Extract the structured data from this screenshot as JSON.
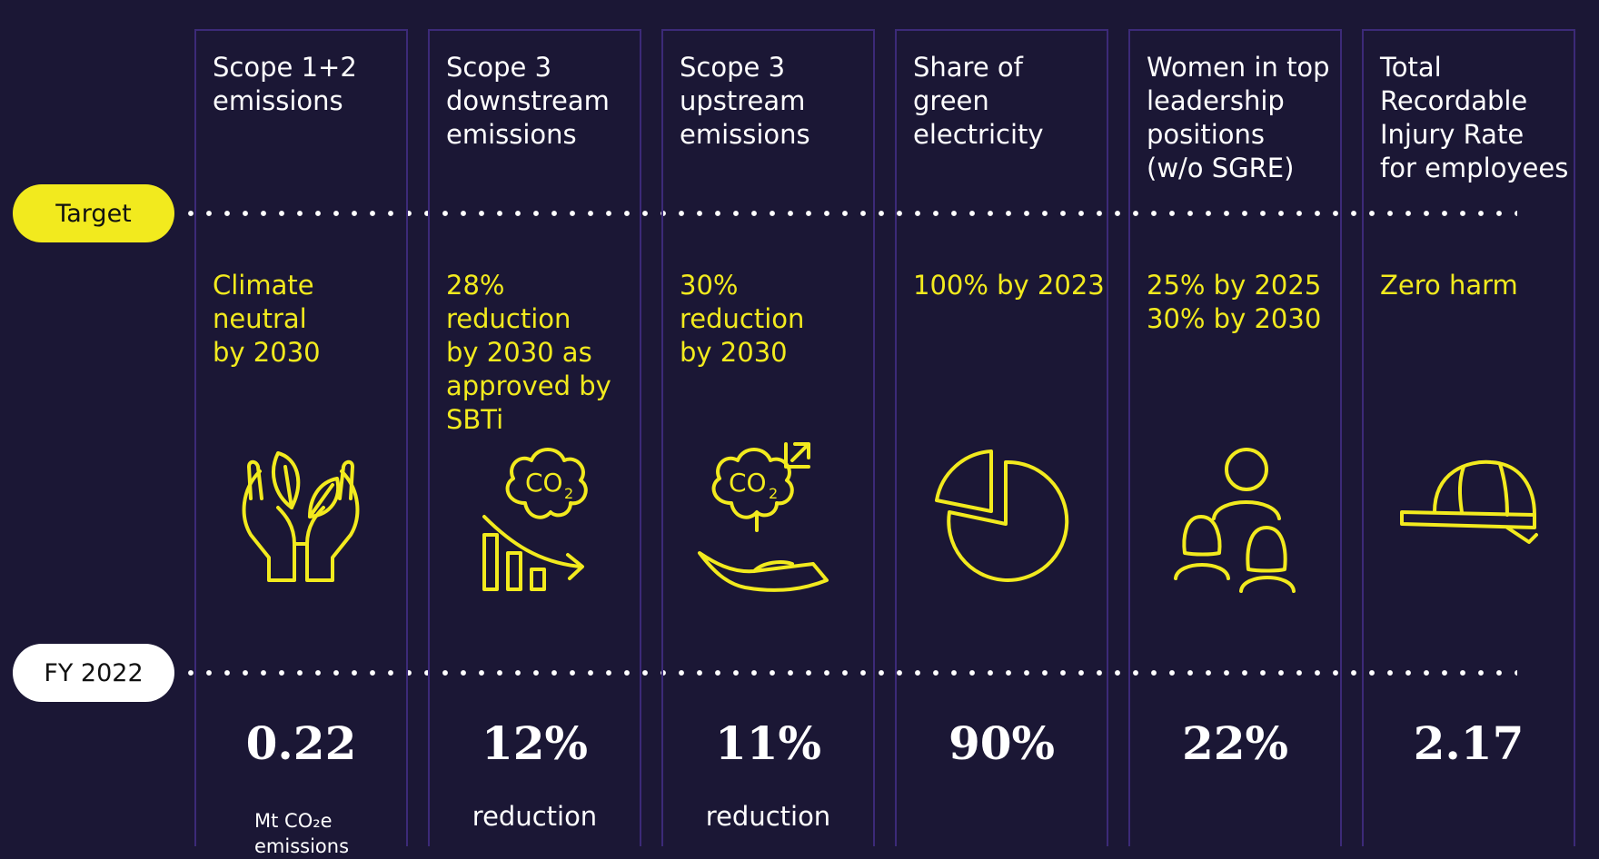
{
  "rows": {
    "target_label": "Target",
    "fy_label": "FY 2022"
  },
  "columns": [
    {
      "title": "Scope 1+2\nemissions",
      "target": "Climate\nneutral\nby 2030",
      "icon": "hands-leaves-icon",
      "value": "0.22",
      "unit": "Mt CO₂e\nemissions"
    },
    {
      "title": "Scope 3\ndownstream\nemissions",
      "target": "28% reduction\nby 2030 as\napproved by\nSBTi",
      "icon": "co2-decreasing-bars-icon",
      "value": "12%",
      "unit": "reduction"
    },
    {
      "title": "Scope 3\nupstream\nemissions",
      "target": "30% reduction\nby 2030",
      "icon": "co2-hand-icon",
      "value": "11%",
      "unit": "reduction"
    },
    {
      "title": "Share of\ngreen\nelectricity",
      "target": "100% by 2023",
      "icon": "pie-chart-icon",
      "value": "90%",
      "unit": ""
    },
    {
      "title": "Women in top\nleadership\npositions\n(w/o SGRE)",
      "target": "25% by 2025\n30% by 2030",
      "icon": "people-group-icon",
      "value": "22%",
      "unit": ""
    },
    {
      "title": "Total\nRecordable\nInjury Rate\nfor employees",
      "target": "Zero harm",
      "icon": "hard-hat-icon",
      "value": "2.17",
      "unit": ""
    }
  ],
  "icon_text": {
    "co2": "CO",
    "sub2": "2"
  },
  "colors": {
    "background": "#1b1735",
    "accent_yellow": "#f2ea1e",
    "column_border": "#3c2a78",
    "text": "#ffffff"
  }
}
